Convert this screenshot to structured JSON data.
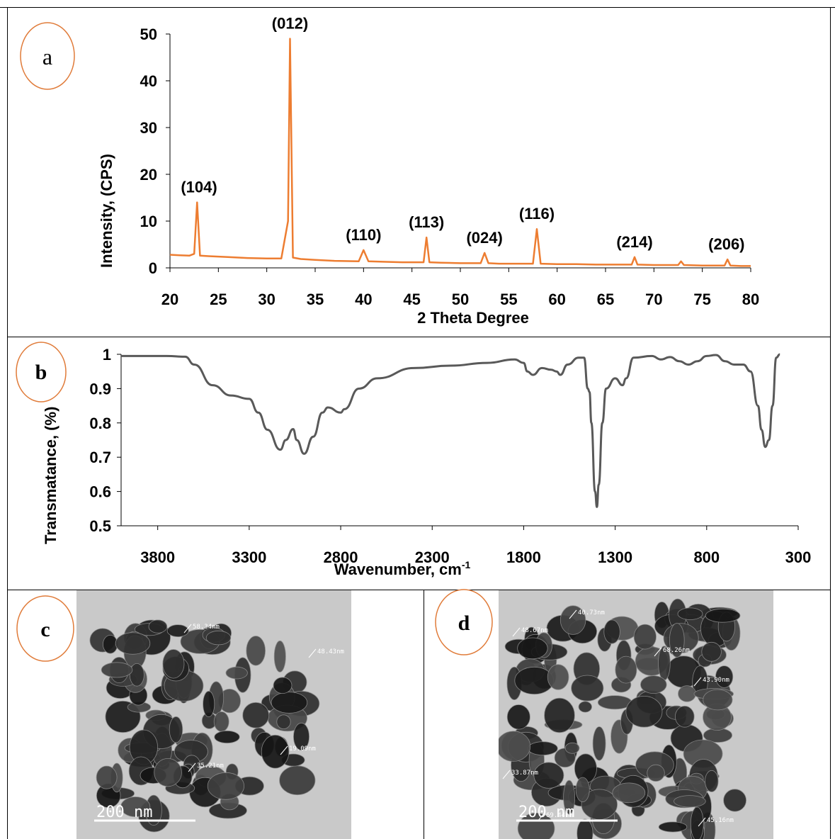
{
  "panels": {
    "a": {
      "letter": "a"
    },
    "b": {
      "letter": "b"
    },
    "c": {
      "letter": "c"
    },
    "d": {
      "letter": "d"
    }
  },
  "colors": {
    "xrd_line": "#ED7D31",
    "ftir_line": "#595959",
    "label_circle": "#E07B39",
    "tem_background": "#cfcfcf",
    "tem_particles": "#1e1e1e"
  },
  "chart_data": [
    {
      "type": "line",
      "title": "",
      "xlabel": "2 Theta Degree",
      "ylabel": "Intensity, (CPS)",
      "xlim": [
        20,
        80
      ],
      "ylim": [
        0,
        50
      ],
      "x_ticks": [
        20,
        25,
        30,
        35,
        40,
        45,
        50,
        55,
        60,
        65,
        70,
        75,
        80
      ],
      "y_ticks": [
        0,
        10,
        20,
        30,
        40,
        50
      ],
      "grid": false,
      "series": [
        {
          "x": [
            20,
            21,
            22,
            22.5,
            22.8,
            23.1,
            24,
            26,
            28,
            30,
            31.5,
            32.2,
            32.4,
            32.7,
            33.5,
            35,
            37,
            39.5,
            40,
            40.5,
            42,
            44,
            46.2,
            46.5,
            46.8,
            48,
            50,
            52.1,
            52.5,
            52.9,
            54,
            56,
            57.5,
            57.9,
            58.3,
            60,
            62,
            64,
            66,
            67.7,
            68,
            68.3,
            70,
            72,
            72.5,
            72.8,
            73.1,
            75,
            77,
            77.3,
            77.6,
            77.9,
            79,
            80
          ],
          "y": [
            2.8,
            2.7,
            2.6,
            3,
            14,
            2.6,
            2.5,
            2.3,
            2.1,
            2,
            2,
            10,
            49,
            2.2,
            1.9,
            1.7,
            1.5,
            1.4,
            3.8,
            1.4,
            1.3,
            1.2,
            1.2,
            6.5,
            1.2,
            1.1,
            1,
            1,
            3.2,
            1,
            0.9,
            0.9,
            0.9,
            8.3,
            0.9,
            0.8,
            0.8,
            0.7,
            0.7,
            0.7,
            2.3,
            0.7,
            0.6,
            0.6,
            0.6,
            1.4,
            0.6,
            0.5,
            0.5,
            0.5,
            1.8,
            0.5,
            0.4,
            0.4
          ]
        }
      ],
      "annotations": [
        {
          "text_a": "(",
          "text_b": "104)",
          "x": 23,
          "y": 14
        },
        {
          "text": "(012)",
          "x": 32.4,
          "y": 49
        },
        {
          "text_a": "(110",
          "text_b": ")",
          "x": 40,
          "y": 3.8
        },
        {
          "text": "(113)",
          "x": 46.5,
          "y": 6.5
        },
        {
          "text_a": "(024",
          "text_b": ")",
          "x": 52.5,
          "y": 3.2
        },
        {
          "text": "(116)",
          "x": 57.9,
          "y": 8.3
        },
        {
          "text": "(214)",
          "x": 68,
          "y": 2.3
        },
        {
          "text_a": "(",
          "text_b": "206)",
          "x": 77.5,
          "y": 1.8
        }
      ]
    },
    {
      "type": "line",
      "title": "",
      "xlabel": "Wavenumber, cm",
      "xlabel_sup": "-1",
      "ylabel": "Transmatance, (%)",
      "xlim": [
        4000,
        300
      ],
      "x_reversed": true,
      "ylim": [
        0.5,
        1
      ],
      "x_ticks": [
        3800,
        3300,
        2800,
        2300,
        1800,
        1300,
        800,
        300
      ],
      "y_ticks": [
        0.5,
        0.6,
        0.7,
        0.8,
        0.9,
        1
      ],
      "y_tick_labels": [
        "0.5",
        "0.6",
        "0.7",
        "0.8",
        "0.9",
        "1"
      ],
      "grid": false,
      "series": [
        {
          "x": [
            4000,
            3750,
            3650,
            3600,
            3500,
            3400,
            3300,
            3250,
            3200,
            3130,
            3100,
            3060,
            3040,
            3000,
            2950,
            2900,
            2870,
            2800,
            2780,
            2700,
            2600,
            2400,
            2200,
            2000,
            1850,
            1800,
            1780,
            1750,
            1700,
            1650,
            1620,
            1600,
            1560,
            1500,
            1470,
            1450,
            1440,
            1430,
            1410,
            1400,
            1390,
            1370,
            1350,
            1300,
            1260,
            1240,
            1200,
            1100,
            1050,
            1000,
            950,
            900,
            850,
            800,
            750,
            700,
            650,
            600,
            560,
            520,
            500,
            480,
            460,
            440,
            420,
            400
          ],
          "y": [
            0.995,
            0.995,
            0.993,
            0.97,
            0.91,
            0.88,
            0.87,
            0.83,
            0.78,
            0.722,
            0.75,
            0.782,
            0.75,
            0.71,
            0.76,
            0.83,
            0.845,
            0.83,
            0.84,
            0.9,
            0.93,
            0.96,
            0.967,
            0.975,
            0.985,
            0.975,
            0.95,
            0.94,
            0.96,
            0.955,
            0.95,
            0.94,
            0.97,
            0.99,
            0.99,
            0.9,
            0.89,
            0.8,
            0.6,
            0.555,
            0.62,
            0.8,
            0.9,
            0.93,
            0.91,
            0.93,
            0.99,
            0.995,
            0.985,
            0.992,
            0.98,
            0.97,
            0.98,
            0.995,
            0.998,
            0.98,
            0.97,
            0.97,
            0.95,
            0.85,
            0.78,
            0.73,
            0.75,
            0.85,
            0.99,
            1
          ]
        }
      ]
    }
  ],
  "tem": {
    "c": {
      "scale": "200 nm",
      "labels": [
        "58.34nm",
        "48.43nm",
        "19.09nm",
        "35.21nm"
      ]
    },
    "d": {
      "scale": "200 nm",
      "labels": [
        "40.73nm",
        "48.67nm",
        "68.26nm",
        "43.90nm",
        "33.87nm",
        "69.44nm",
        "45.16nm"
      ]
    }
  }
}
